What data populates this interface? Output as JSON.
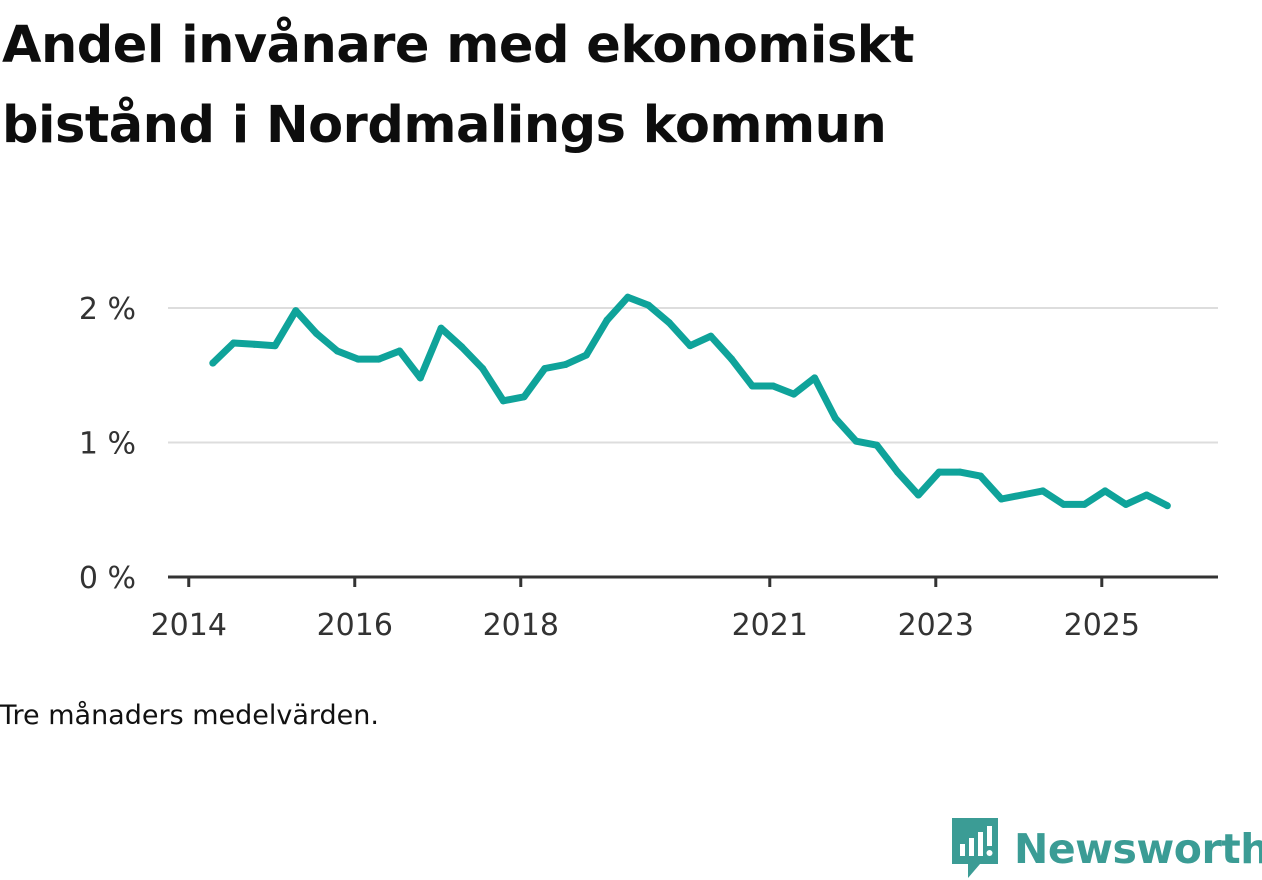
{
  "title_lines": [
    "Andel invånare med ekonomiskt",
    "bistånd i Nordmalings kommun"
  ],
  "note": "Tre månaders medelvärden.",
  "brand": {
    "name": "Newsworthy",
    "color": "#3b9c95",
    "icon": "bar-chart-speech-bubble-icon"
  },
  "colors": {
    "line": "#0fa39a",
    "grid": "#dddddd",
    "axis": "#333333"
  },
  "chart_data": {
    "type": "line",
    "title": "Andel invånare med ekonomiskt bistånd i Nordmalings kommun",
    "xlabel": "",
    "ylabel": "",
    "ylim": [
      0,
      2.0
    ],
    "y_ticks": [
      {
        "value": 0,
        "label": "0 %"
      },
      {
        "value": 1,
        "label": "1 %"
      },
      {
        "value": 2,
        "label": "2 %"
      }
    ],
    "x_ticks": [
      {
        "value": 2014.0,
        "label": "2014"
      },
      {
        "value": 2016.0,
        "label": "2016"
      },
      {
        "value": 2018.0,
        "label": "2018"
      },
      {
        "value": 2021.0,
        "label": "2021"
      },
      {
        "value": 2023.0,
        "label": "2023"
      },
      {
        "value": 2025.0,
        "label": "2025"
      }
    ],
    "xlim": [
      2013.75,
      2026.4
    ],
    "series": [
      {
        "name": "Andel invånare med ekonomiskt bistånd",
        "x": [
          2014.29,
          2014.54,
          2014.79,
          2015.04,
          2015.29,
          2015.54,
          2015.79,
          2016.04,
          2016.29,
          2016.54,
          2016.79,
          2017.04,
          2017.29,
          2017.54,
          2017.79,
          2018.04,
          2018.29,
          2018.54,
          2018.79,
          2019.04,
          2019.29,
          2019.54,
          2019.79,
          2020.04,
          2020.29,
          2020.54,
          2020.79,
          2021.04,
          2021.29,
          2021.54,
          2021.79,
          2022.04,
          2022.29,
          2022.54,
          2022.79,
          2023.04,
          2023.29,
          2023.54,
          2023.79,
          2024.04,
          2024.29,
          2024.54,
          2024.79,
          2025.04,
          2025.29,
          2025.54,
          2025.79
        ],
        "values": [
          1.59,
          1.74,
          1.73,
          1.72,
          1.98,
          1.81,
          1.68,
          1.62,
          1.62,
          1.68,
          1.48,
          1.85,
          1.71,
          1.55,
          1.31,
          1.34,
          1.55,
          1.58,
          1.65,
          1.91,
          2.08,
          2.02,
          1.89,
          1.72,
          1.79,
          1.62,
          1.42,
          1.42,
          1.36,
          1.48,
          1.18,
          1.01,
          0.98,
          0.78,
          0.61,
          0.78,
          0.78,
          0.75,
          0.58,
          0.61,
          0.64,
          0.54,
          0.54,
          0.64,
          0.54,
          0.61,
          0.53
        ]
      }
    ]
  }
}
